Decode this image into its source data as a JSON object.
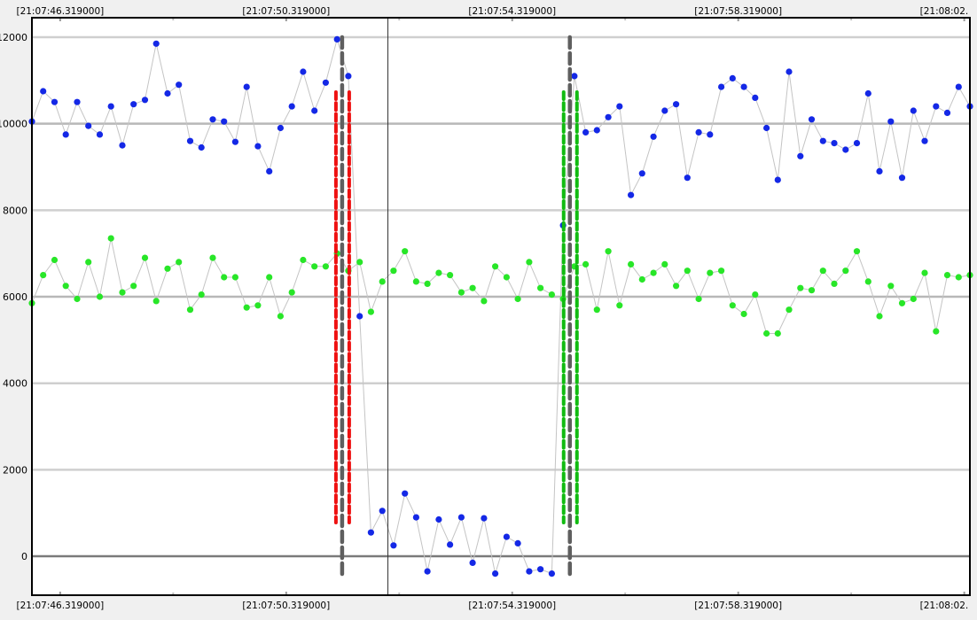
{
  "chart_data": {
    "type": "scatter",
    "x_axis": {
      "ticks": [
        "[21:07:46.319000]",
        "[21:07:50.319000]",
        "[21:07:54.319000]",
        "[21:07:58.319000]",
        "[21:08:02."
      ],
      "tick_seconds": [
        0,
        4,
        8,
        12,
        16
      ],
      "range_seconds": [
        -0.5,
        16.1
      ]
    },
    "y_axis": {
      "ticks": [
        "12000",
        "10000",
        "8000",
        "6000",
        "4000",
        "2000",
        "0"
      ],
      "tick_values": [
        12000,
        10000,
        8000,
        6000,
        4000,
        2000,
        0
      ],
      "range": [
        -900,
        12450
      ]
    },
    "grid": true,
    "cursor_x_seconds": 5.8,
    "series": [
      {
        "color": "#1428e6",
        "x": [
          -0.5,
          -0.3,
          -0.1,
          0.1,
          0.3,
          0.5,
          0.7,
          0.9,
          1.1,
          1.3,
          1.5,
          1.7,
          1.9,
          2.1,
          2.3,
          2.5,
          2.7,
          2.9,
          3.1,
          3.3,
          3.5,
          3.7,
          3.9,
          4.1,
          4.3,
          4.5,
          4.7,
          4.9,
          5.1,
          5.3,
          5.5,
          5.7,
          5.9,
          6.1,
          6.3,
          6.5,
          6.7,
          6.9,
          7.1,
          7.3,
          7.5,
          7.7,
          7.9,
          8.1,
          8.3,
          8.5,
          8.7,
          8.9,
          9.1,
          9.3,
          9.5,
          9.7,
          9.9,
          10.1,
          10.3,
          10.5,
          10.7,
          10.9,
          11.1,
          11.3,
          11.5,
          11.7,
          11.9,
          12.1,
          12.3,
          12.5,
          12.7,
          12.9,
          13.1,
          13.3,
          13.5,
          13.7,
          13.9,
          14.1,
          14.3,
          14.5,
          14.7,
          14.9,
          15.1,
          15.3,
          15.5,
          15.7,
          15.9,
          16.1
        ],
        "y": [
          10050,
          10750,
          10500,
          9750,
          10500,
          9950,
          9750,
          10400,
          9500,
          10450,
          10550,
          11850,
          10700,
          10900,
          9600,
          9450,
          10100,
          10050,
          9580,
          10850,
          9480,
          8900,
          9900,
          10400,
          11200,
          10300,
          10950,
          11950,
          11100,
          5550,
          550,
          1050,
          250,
          1450,
          900,
          -350,
          850,
          270,
          900,
          -150,
          880,
          -400,
          450,
          300,
          -350,
          -300,
          -400,
          7650,
          11100,
          9800,
          9850,
          10150,
          10400,
          8350,
          8850,
          9700,
          10300,
          10450,
          8750,
          9800,
          9750,
          10850,
          11050,
          10850,
          10600,
          9900,
          8700,
          11200,
          9250,
          10100,
          9600,
          9550,
          9400,
          9550,
          10700,
          8900,
          10050,
          8750,
          10300,
          9600,
          10400,
          10250,
          10850,
          10400
        ]
      },
      {
        "color": "#28e628",
        "x": [
          -0.5,
          -0.3,
          -0.1,
          0.1,
          0.3,
          0.5,
          0.7,
          0.9,
          1.1,
          1.3,
          1.5,
          1.7,
          1.9,
          2.1,
          2.3,
          2.5,
          2.7,
          2.9,
          3.1,
          3.3,
          3.5,
          3.7,
          3.9,
          4.1,
          4.3,
          4.5,
          4.7,
          4.9,
          5.1,
          5.3,
          5.5,
          5.7,
          5.9,
          6.1,
          6.3,
          6.5,
          6.7,
          6.9,
          7.1,
          7.3,
          7.5,
          7.7,
          7.9,
          8.1,
          8.3,
          8.5,
          8.7,
          8.9,
          9.1,
          9.3,
          9.5,
          9.7,
          9.9,
          10.1,
          10.3,
          10.5,
          10.7,
          10.9,
          11.1,
          11.3,
          11.5,
          11.7,
          11.9,
          12.1,
          12.3,
          12.5,
          12.7,
          12.9,
          13.1,
          13.3,
          13.5,
          13.7,
          13.9,
          14.1,
          14.3,
          14.5,
          14.7,
          14.9,
          15.1,
          15.3,
          15.5,
          15.7,
          15.9,
          16.1
        ],
        "y": [
          5850,
          6500,
          6850,
          6250,
          5950,
          6800,
          6000,
          7350,
          6100,
          6250,
          6900,
          5900,
          6650,
          6800,
          5700,
          6050,
          6900,
          6450,
          6450,
          5750,
          5800,
          6450,
          5550,
          6100,
          6850,
          6700,
          6700,
          7000,
          6600,
          6800,
          5650,
          6350,
          6600,
          7050,
          6350,
          6300,
          6550,
          6500,
          6100,
          6200,
          5900,
          6700,
          6450,
          5950,
          6800,
          6200,
          6050,
          5950,
          6700,
          6750,
          5700,
          7050,
          5800,
          6750,
          6400,
          6550,
          6750,
          6250,
          6600,
          5950,
          6550,
          6600,
          5800,
          5600,
          6050,
          5150,
          5150,
          5700,
          6200,
          6150,
          6600,
          6300,
          6600,
          7050,
          6350,
          5550,
          6250,
          5850,
          5950,
          6550,
          5200,
          6500,
          6450,
          6500
        ]
      }
    ],
    "markers": [
      {
        "x_seconds": 4.99,
        "color": "#ee1111"
      },
      {
        "x_seconds": 9.02,
        "color": "#11bb11"
      }
    ]
  }
}
